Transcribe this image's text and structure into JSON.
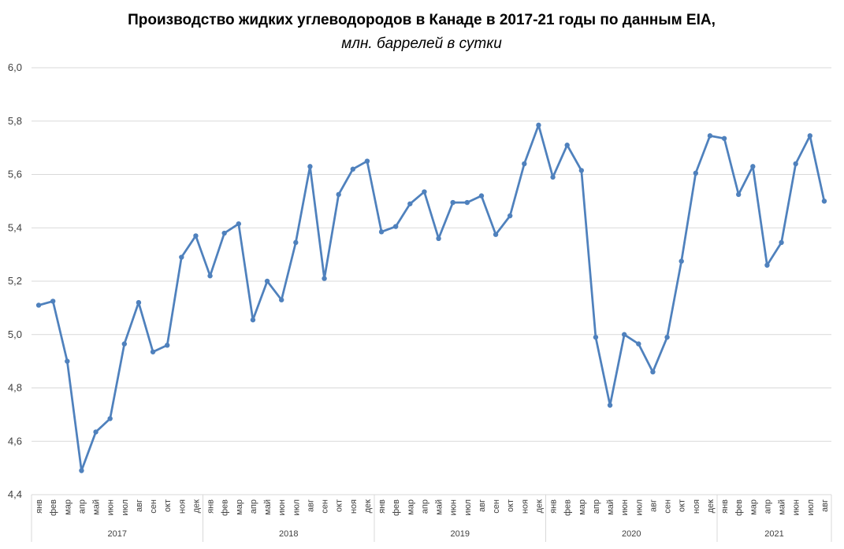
{
  "chart_data": {
    "type": "line",
    "title": "Производство жидких углеводородов в Канаде в 2017-21 годы по данным EIA,",
    "subtitle": "млн. баррелей в сутки",
    "ylim": [
      4.4,
      6.0
    ],
    "yticks": [
      "4,4",
      "4,6",
      "4,8",
      "5,0",
      "5,2",
      "5,4",
      "5,6",
      "5,8",
      "6,0"
    ],
    "grid": true,
    "color": "#4F81BD",
    "years": [
      "2017",
      "2018",
      "2019",
      "2020",
      "2021"
    ],
    "months_per_year": [
      12,
      12,
      12,
      12,
      8
    ],
    "month_labels": [
      "янв",
      "фев",
      "мар",
      "апр",
      "май",
      "июн",
      "июл",
      "авг",
      "сен",
      "окт",
      "ноя",
      "дек"
    ],
    "values": [
      5.11,
      5.125,
      4.9,
      4.49,
      4.635,
      4.685,
      4.965,
      5.12,
      4.935,
      4.96,
      5.29,
      5.37,
      5.22,
      5.38,
      5.415,
      5.055,
      5.2,
      5.13,
      5.345,
      5.63,
      5.21,
      5.525,
      5.62,
      5.65,
      5.385,
      5.405,
      5.49,
      5.535,
      5.36,
      5.495,
      5.495,
      5.52,
      5.375,
      5.445,
      5.64,
      5.785,
      5.59,
      5.71,
      5.615,
      4.99,
      4.735,
      5.0,
      4.965,
      4.86,
      4.99,
      5.275,
      5.605,
      5.745,
      5.735,
      5.525,
      5.63,
      5.26,
      5.345,
      5.64,
      5.745,
      5.5
    ]
  }
}
